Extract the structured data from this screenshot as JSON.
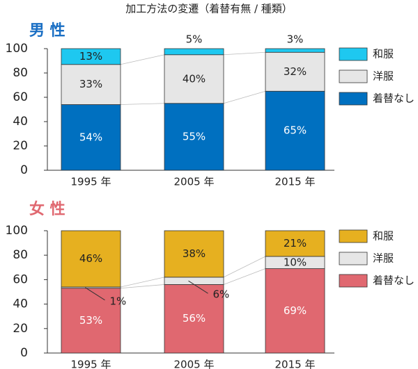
{
  "title": "加工方法の変遷（着替有無 / 種類）",
  "chart_data": [
    {
      "type": "bar",
      "stacked": true,
      "title": "男 性",
      "title_color": "#1a6fc4",
      "categories": [
        "1995 年",
        "2005 年",
        "2015 年"
      ],
      "series": [
        {
          "name": "着替なし",
          "color": "#0070c0",
          "values": [
            54,
            55,
            65
          ],
          "value_labels": [
            "54%",
            "55%",
            "65%"
          ]
        },
        {
          "name": "洋服",
          "color": "#e6e6e6",
          "values": [
            33,
            40,
            32
          ],
          "value_labels": [
            "33%",
            "40%",
            "32%"
          ]
        },
        {
          "name": "和服",
          "color": "#1ec8f0",
          "values": [
            13,
            5,
            3
          ],
          "value_labels": [
            "13%",
            "5%",
            "3%"
          ]
        }
      ],
      "ylim": [
        0,
        100
      ],
      "yticks": [
        0,
        20,
        40,
        60,
        80,
        100
      ],
      "legend": "right"
    },
    {
      "type": "bar",
      "stacked": true,
      "title": "女 性",
      "title_color": "#e06870",
      "categories": [
        "1995 年",
        "2005 年",
        "2015 年"
      ],
      "series": [
        {
          "name": "着替なし",
          "color": "#e06870",
          "values": [
            53,
            56,
            69
          ],
          "value_labels": [
            "53%",
            "56%",
            "69%"
          ]
        },
        {
          "name": "洋服",
          "color": "#e6e6e6",
          "values": [
            1,
            6,
            10
          ],
          "value_labels": [
            "1%",
            "6%",
            "10%"
          ]
        },
        {
          "name": "和服",
          "color": "#e6b020",
          "values": [
            46,
            38,
            21
          ],
          "value_labels": [
            "46%",
            "38%",
            "21%"
          ]
        }
      ],
      "ylim": [
        0,
        100
      ],
      "yticks": [
        0,
        20,
        40,
        60,
        80,
        100
      ],
      "legend": "right"
    }
  ]
}
